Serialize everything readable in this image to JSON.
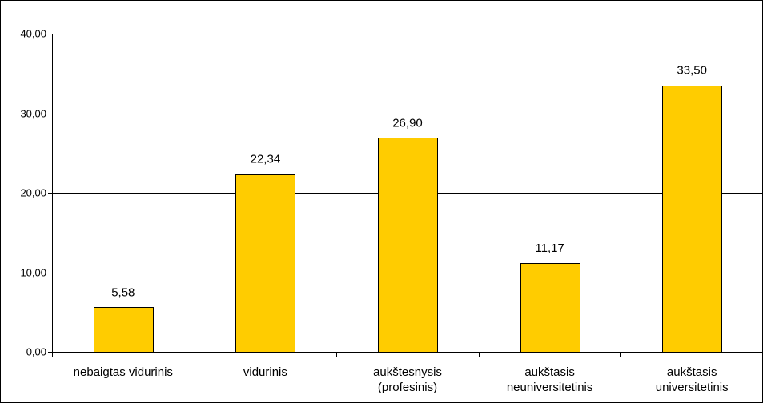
{
  "chart_data": {
    "type": "bar",
    "categories": [
      [
        "nebaigtas vidurinis"
      ],
      [
        "vidurinis"
      ],
      [
        "aukštesnysis",
        "(profesinis)"
      ],
      [
        "aukštasis",
        "neuniversitetinis"
      ],
      [
        "aukštasis",
        "universitetinis"
      ]
    ],
    "values": [
      5.58,
      22.34,
      26.9,
      11.17,
      33.5
    ],
    "value_labels": [
      "5,58",
      "22,34",
      "26,90",
      "11,17",
      "33,50"
    ],
    "y_ticks": [
      0,
      10,
      20,
      30,
      40
    ],
    "y_tick_labels": [
      "0,00",
      "10,00",
      "20,00",
      "30,00",
      "40,00"
    ],
    "ylim": [
      0,
      40
    ],
    "grid": true,
    "legend": "none",
    "colors": {
      "bar_fill": "#FFCC00",
      "bar_stroke": "#000000",
      "grid": "#000000",
      "axis": "#000000"
    }
  }
}
